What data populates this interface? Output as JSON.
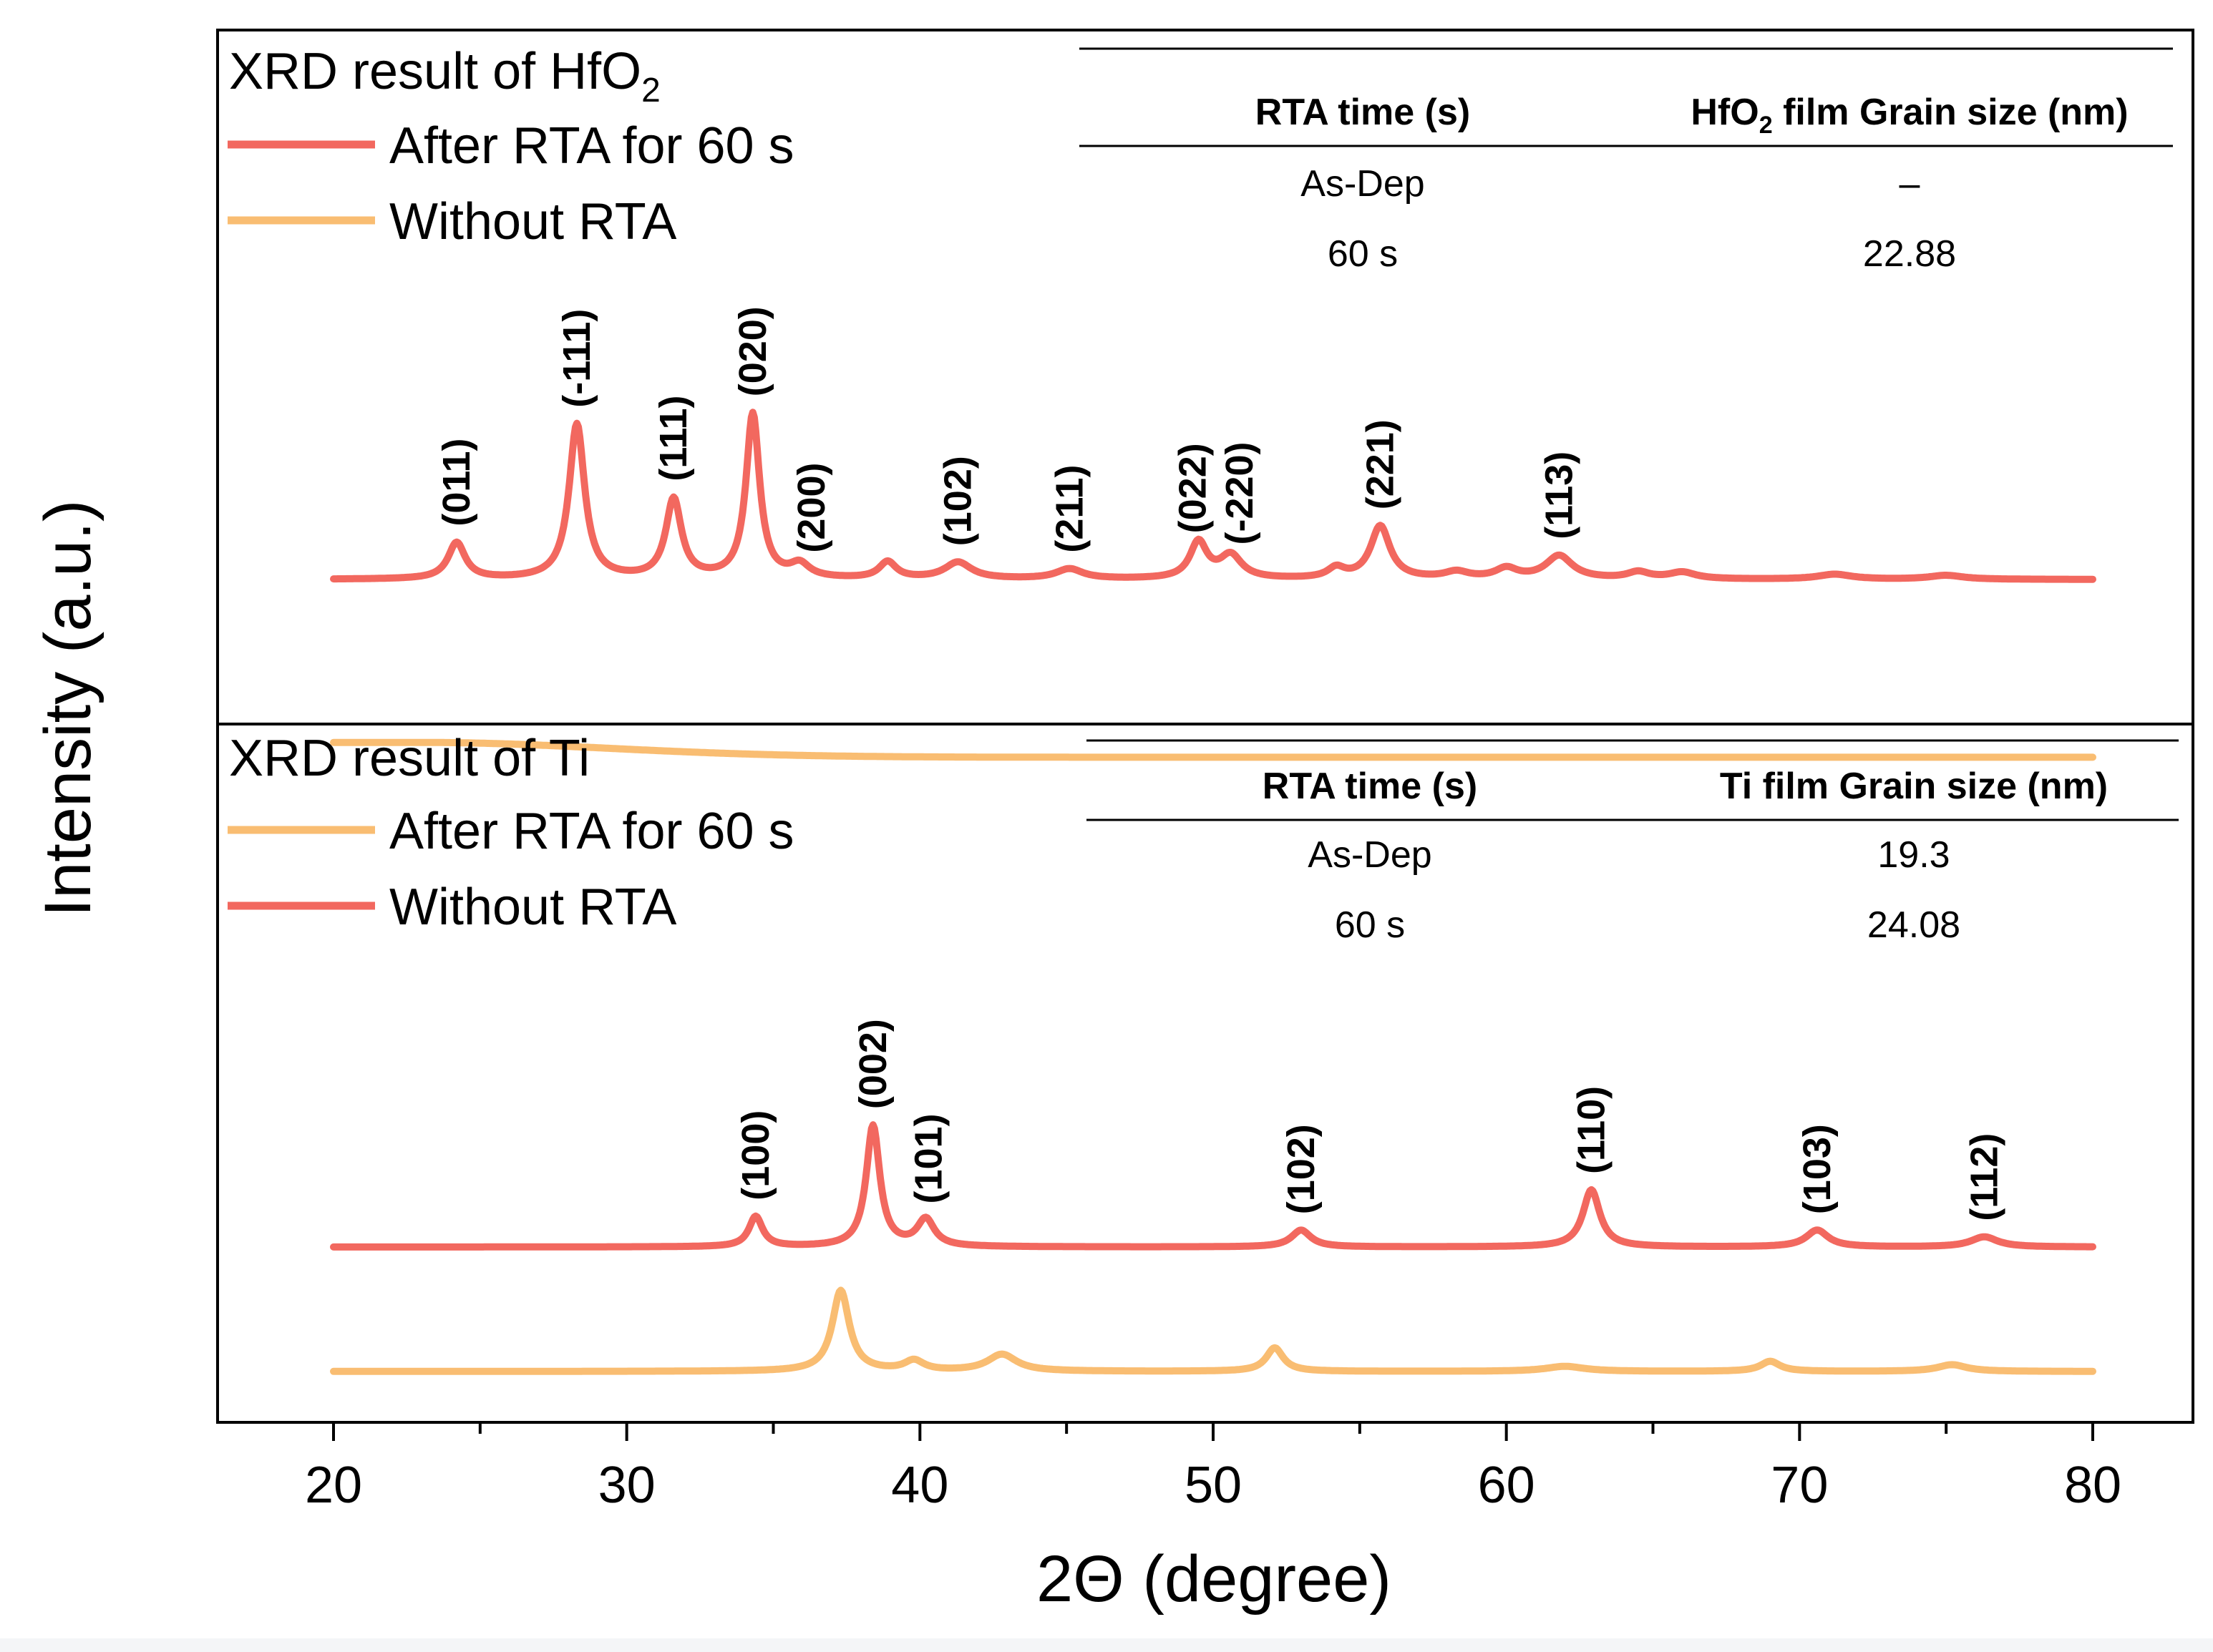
{
  "chart_data": {
    "type": "line",
    "xlabel": "2Θ (degree)",
    "ylabel": "Intensity (a.u.)",
    "xlim": [
      16,
      84
    ],
    "xticks": [
      20,
      30,
      40,
      50,
      60,
      70,
      80
    ],
    "xtick_labels": [
      "20",
      "30",
      "40",
      "50",
      "60",
      "70",
      "80"
    ],
    "colors": {
      "red": "#f2685f",
      "orange": "#f9bd72",
      "axis": "#000000"
    },
    "panels": [
      {
        "id": "hfo2",
        "title_main": "XRD result of HfO",
        "title_sub": "2",
        "legend": [
          {
            "label": "After RTA for 60 s",
            "color": "#f2685f"
          },
          {
            "label": "Without RTA",
            "color": "#f9bd72"
          }
        ],
        "table": {
          "headers": [
            "RTA time (s)",
            "HfO",
            "2",
            " film Grain size (nm)"
          ],
          "rows": [
            [
              "As-Dep",
              "–"
            ],
            [
              "60 s",
              "22.88"
            ]
          ]
        },
        "series": [
          {
            "name": "After RTA for 60 s",
            "color": "#f2685f",
            "baseline": 0.1,
            "peaks": [
              {
                "x": 24.2,
                "h": 0.11,
                "w": 0.35
              },
              {
                "x": 28.3,
                "h": 0.47,
                "w": 0.32
              },
              {
                "x": 31.6,
                "h": 0.24,
                "w": 0.32
              },
              {
                "x": 34.3,
                "h": 0.5,
                "w": 0.28
              },
              {
                "x": 35.9,
                "h": 0.04,
                "w": 0.4
              },
              {
                "x": 38.9,
                "h": 0.05,
                "w": 0.35
              },
              {
                "x": 41.3,
                "h": 0.05,
                "w": 0.55
              },
              {
                "x": 45.1,
                "h": 0.03,
                "w": 0.55
              },
              {
                "x": 49.5,
                "h": 0.11,
                "w": 0.35
              },
              {
                "x": 50.6,
                "h": 0.07,
                "w": 0.45
              },
              {
                "x": 54.2,
                "h": 0.03,
                "w": 0.35
              },
              {
                "x": 55.7,
                "h": 0.16,
                "w": 0.4
              },
              {
                "x": 58.3,
                "h": 0.02,
                "w": 0.5
              },
              {
                "x": 60.0,
                "h": 0.03,
                "w": 0.45
              },
              {
                "x": 61.8,
                "h": 0.07,
                "w": 0.55
              },
              {
                "x": 64.5,
                "h": 0.02,
                "w": 0.45
              },
              {
                "x": 66.0,
                "h": 0.02,
                "w": 0.55
              },
              {
                "x": 71.2,
                "h": 0.015,
                "w": 0.7
              },
              {
                "x": 75.0,
                "h": 0.012,
                "w": 0.7
              }
            ],
            "labels": [
              {
                "text": "(011)",
                "x": 24.2
              },
              {
                "text": "(-111)",
                "x": 28.3
              },
              {
                "text": "(111)",
                "x": 31.6
              },
              {
                "text": "(020)",
                "x": 34.3
              },
              {
                "text": "(200)",
                "x": 36.3
              },
              {
                "text": "(102)",
                "x": 41.3
              },
              {
                "text": "(211)",
                "x": 45.1
              },
              {
                "text": "(022)",
                "x": 49.3
              },
              {
                "text": "(-220)",
                "x": 50.9
              },
              {
                "text": "(221)",
                "x": 55.7
              },
              {
                "text": "(113)",
                "x": 61.8
              }
            ]
          },
          {
            "name": "Without RTA",
            "color": "#f9bd72",
            "baseline": -0.44,
            "amorphous": {
              "x": 23.0,
              "h": 0.045,
              "w": 9.0
            },
            "peaks": [],
            "labels": []
          }
        ]
      },
      {
        "id": "ti",
        "title_main": "XRD result of Ti",
        "title_sub": "",
        "legend": [
          {
            "label": "After RTA for 60 s",
            "color": "#f9bd72"
          },
          {
            "label": "Without RTA",
            "color": "#f2685f"
          }
        ],
        "table": {
          "headers": [
            "RTA time (s)",
            "Ti film Grain size (nm)",
            "",
            ""
          ],
          "rows": [
            [
              "As-Dep",
              "19.3"
            ],
            [
              "60 s",
              "24.08"
            ]
          ]
        },
        "series": [
          {
            "name": "Without RTA",
            "color": "#f2685f",
            "baseline": 0.1,
            "peaks": [
              {
                "x": 34.4,
                "h": 0.09,
                "w": 0.28
              },
              {
                "x": 38.4,
                "h": 0.36,
                "w": 0.28
              },
              {
                "x": 40.2,
                "h": 0.08,
                "w": 0.35
              },
              {
                "x": 53.0,
                "h": 0.05,
                "w": 0.4
              },
              {
                "x": 62.9,
                "h": 0.17,
                "w": 0.35
              },
              {
                "x": 70.6,
                "h": 0.05,
                "w": 0.45
              },
              {
                "x": 76.3,
                "h": 0.03,
                "w": 0.55
              }
            ],
            "labels": [
              {
                "text": "(100)",
                "x": 34.4
              },
              {
                "text": "(002)",
                "x": 38.4
              },
              {
                "text": "(101)",
                "x": 40.3
              },
              {
                "text": "(102)",
                "x": 53.0
              },
              {
                "text": "(110)",
                "x": 62.9
              },
              {
                "text": "(103)",
                "x": 70.6
              },
              {
                "text": "(112)",
                "x": 76.3
              }
            ]
          },
          {
            "name": "After RTA for 60 s",
            "color": "#f9bd72",
            "baseline": -0.27,
            "peaks": [
              {
                "x": 37.3,
                "h": 0.24,
                "w": 0.35
              },
              {
                "x": 39.8,
                "h": 0.03,
                "w": 0.4
              },
              {
                "x": 42.8,
                "h": 0.05,
                "w": 0.6
              },
              {
                "x": 52.1,
                "h": 0.07,
                "w": 0.35
              },
              {
                "x": 62.0,
                "h": 0.015,
                "w": 0.8
              },
              {
                "x": 69.0,
                "h": 0.03,
                "w": 0.4
              },
              {
                "x": 75.2,
                "h": 0.02,
                "w": 0.6
              }
            ],
            "labels": []
          }
        ]
      }
    ]
  }
}
